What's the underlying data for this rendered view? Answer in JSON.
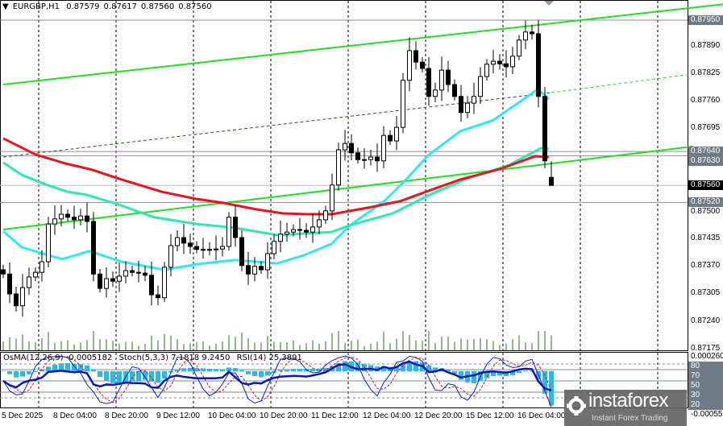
{
  "header": {
    "symbol": "EURGBP,H1",
    "open": "0.87579",
    "high": "0.87617",
    "low": "0.87560",
    "close": "0.87560"
  },
  "indicator_header": {
    "osma": "OsMA(12,26,9) -0.0005182",
    "stoch": "Stoch(5,3,3) 7.1818 9.2450",
    "rsi": "RSI(14) 25.3891"
  },
  "price_axis": [
    "0.87890",
    "0.87825",
    "0.87760",
    "0.87695",
    "0.87500",
    "0.87435",
    "0.87370",
    "0.87305",
    "0.87240",
    "0.87175"
  ],
  "price_tags": [
    {
      "label": "0.87950",
      "value": 0.8795,
      "current": false
    },
    {
      "label": "0.87640",
      "value": 0.8764,
      "current": false
    },
    {
      "label": "0.87630",
      "value": 0.8763,
      "current": false
    },
    {
      "label": "0.87560",
      "value": 0.8756,
      "current": true
    },
    {
      "label": "0.87520",
      "value": 0.8752,
      "current": false
    }
  ],
  "indicator_axis": {
    "top": "0.000260",
    "bottom": "-0.000555",
    "levels": [
      "80",
      "70",
      "50",
      "30",
      "20"
    ]
  },
  "time_axis": [
    "5 Dec 2025",
    "8 Dec 04:00",
    "8 Dec 20:00",
    "9 Dec 12:00",
    "10 Dec 04:00",
    "10 Dec 20:00",
    "11 Dec 12:00",
    "12 Dec 04:00",
    "12 Dec 20:00",
    "15 Dec 12:00",
    "16 Dec 04:00"
  ],
  "logo": {
    "name": "instaforex",
    "tagline": "Instant Forex Trading"
  },
  "colors": {
    "trendline": "#22dd22",
    "ma_fast": "#33e6f0",
    "ma_mid": "#2ee8b0",
    "ma_slow": "#e8141e",
    "volume": "#1f7a1f",
    "osma": "#29b8ea",
    "stoch_main": "#1020c0",
    "stoch_signal": "#e01010",
    "rsi": "#0a18b0",
    "level_line": "#7a8a99",
    "current_price_bg": "#000000",
    "tag_bg": "#6e7a86"
  },
  "chart_data": {
    "type": "candlestick",
    "symbol": "EURGBP",
    "timeframe": "H1",
    "ylim": [
      0.87175,
      0.8795
    ],
    "grid": true,
    "closes": [
      0.87351,
      0.87304,
      0.87276,
      0.87319,
      0.87344,
      0.87355,
      0.8738,
      0.87469,
      0.87481,
      0.87492,
      0.87485,
      0.87479,
      0.87488,
      0.87475,
      0.87351,
      0.87317,
      0.8734,
      0.87334,
      0.87346,
      0.87359,
      0.87355,
      0.87353,
      0.87348,
      0.87302,
      0.87295,
      0.87367,
      0.87418,
      0.87437,
      0.87424,
      0.87416,
      0.87409,
      0.87409,
      0.87409,
      0.8741,
      0.87416,
      0.87485,
      0.87437,
      0.87371,
      0.87351,
      0.87369,
      0.87361,
      0.87399,
      0.87428,
      0.87445,
      0.8745,
      0.87456,
      0.87454,
      0.8745,
      0.87462,
      0.87479,
      0.875,
      0.87561,
      0.87644,
      0.87659,
      0.87637,
      0.87621,
      0.87621,
      0.87627,
      0.87618,
      0.87678,
      0.87665,
      0.87697,
      0.87808,
      0.87878,
      0.87851,
      0.87836,
      0.8777,
      0.87785,
      0.87832,
      0.87798,
      0.8777,
      0.87732,
      0.87754,
      0.8777,
      0.87817,
      0.87846,
      0.87853,
      0.87847,
      0.8784,
      0.87865,
      0.87903,
      0.87922,
      0.87918,
      0.8777,
      0.87618,
      0.8756
    ],
    "last_bar": {
      "open": 0.87579,
      "high": 0.87617,
      "low": 0.8756,
      "close": 0.8756
    },
    "moving_averages": [
      {
        "color": "#33e6f0",
        "points": [
          [
            0,
            0.87452
          ],
          [
            2.9,
            0.87414
          ],
          [
            9.1,
            0.87386
          ],
          [
            13.4,
            0.87405
          ],
          [
            18.4,
            0.8738
          ],
          [
            25,
            0.87361
          ],
          [
            30,
            0.87374
          ],
          [
            35.9,
            0.87384
          ],
          [
            42.5,
            0.87376
          ],
          [
            46.6,
            0.87395
          ],
          [
            50.9,
            0.87422
          ],
          [
            53.8,
            0.87466
          ],
          [
            59.1,
            0.87523
          ],
          [
            62.5,
            0.87574
          ],
          [
            65.9,
            0.87631
          ],
          [
            70.9,
            0.87688
          ],
          [
            75.9,
            0.87713
          ],
          [
            80,
            0.87756
          ],
          [
            82.9,
            0.87787
          ],
          [
            84.6,
            0.87764
          ]
        ]
      },
      {
        "color": "#2ee8b0",
        "points": [
          [
            0,
            0.87614
          ],
          [
            2.9,
            0.87585
          ],
          [
            6.3,
            0.87564
          ],
          [
            10,
            0.87545
          ],
          [
            12.9,
            0.87538
          ],
          [
            17.5,
            0.87517
          ],
          [
            23.4,
            0.87485
          ],
          [
            30,
            0.87469
          ],
          [
            35.9,
            0.8746
          ],
          [
            42.5,
            0.87443
          ],
          [
            50.9,
            0.8745
          ],
          [
            53.8,
            0.87466
          ],
          [
            60.4,
            0.87494
          ],
          [
            65.9,
            0.87536
          ],
          [
            71.6,
            0.87574
          ],
          [
            78.4,
            0.87608
          ],
          [
            83.4,
            0.87648
          ],
          [
            84.6,
            0.87646
          ]
        ]
      },
      {
        "color": "#e8141e",
        "points": [
          [
            0,
            0.87671
          ],
          [
            5,
            0.87633
          ],
          [
            9.6,
            0.87612
          ],
          [
            13.8,
            0.87597
          ],
          [
            17.9,
            0.87576
          ],
          [
            24.6,
            0.87545
          ],
          [
            30,
            0.87528
          ],
          [
            34.1,
            0.87519
          ],
          [
            39.1,
            0.87504
          ],
          [
            43.4,
            0.87494
          ],
          [
            47.1,
            0.87492
          ],
          [
            50.9,
            0.87492
          ],
          [
            57.1,
            0.87509
          ],
          [
            61.6,
            0.87523
          ],
          [
            65.9,
            0.87547
          ],
          [
            70.9,
            0.87574
          ],
          [
            77.1,
            0.87599
          ],
          [
            82.5,
            0.87629
          ],
          [
            84.6,
            0.87627
          ]
        ]
      }
    ],
    "trendlines": [
      {
        "from": [
          0,
          0.87798
        ],
        "to": [
          112,
          0.87988
        ],
        "style": "solid"
      },
      {
        "from": [
          0,
          0.87627
        ],
        "to": [
          85,
          0.87779
        ],
        "style": "dashed-dark"
      },
      {
        "from": [
          85,
          0.87779
        ],
        "to": [
          106,
          0.87821
        ],
        "style": "dashed"
      },
      {
        "from": [
          0,
          0.87456
        ],
        "to": [
          107,
          0.87652
        ],
        "style": "solid"
      }
    ],
    "indicators": [
      "OsMA(12,26,9)",
      "Stoch(5,3,3)",
      "RSI(14)"
    ],
    "indicator_levels": [
      80,
      70,
      50,
      30,
      20
    ],
    "indicator_range": [
      -0.000555,
      0.00026
    ]
  }
}
